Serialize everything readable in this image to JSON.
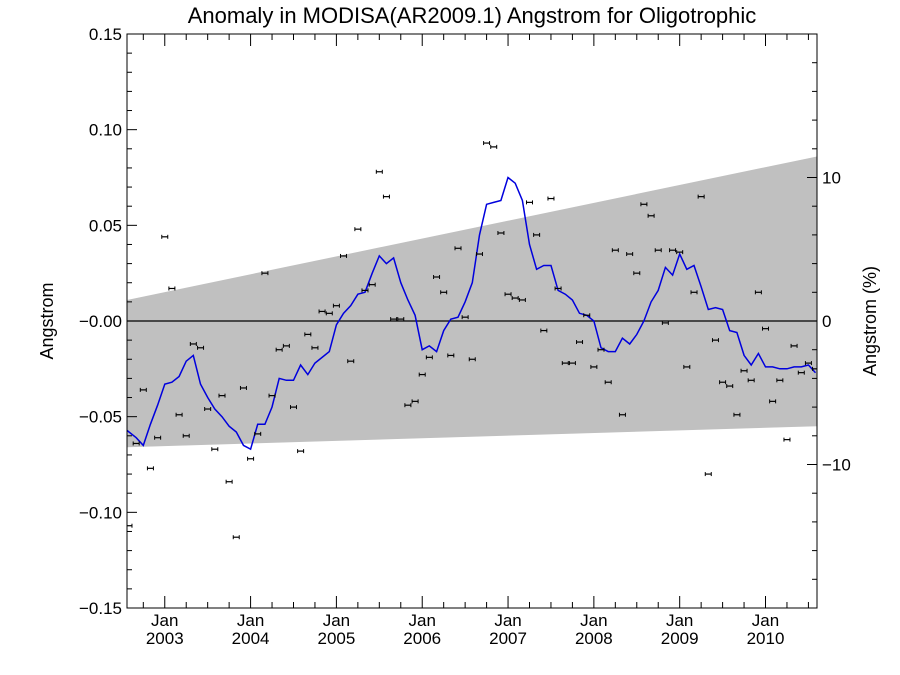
{
  "chart_data": {
    "type": "line",
    "title": "Anomaly in MODISA(AR2009.1) Angstrom for Oligotrophic",
    "ylabel": "Angstrom",
    "y2label": "Angstrom (%)",
    "xlim": [
      2002.56,
      2010.6
    ],
    "ylim": [
      -0.15,
      0.15
    ],
    "y2lim": [
      -20,
      20
    ],
    "yticks": [
      -0.15,
      -0.1,
      -0.05,
      0.0,
      0.05,
      0.1,
      0.15
    ],
    "ytick_labels": [
      "−0.15",
      "−0.10",
      "−0.05",
      "−0.00",
      "0.05",
      "0.10",
      "0.15"
    ],
    "y2ticks": [
      -10,
      0,
      10
    ],
    "y2tick_labels": [
      "−10",
      "0",
      "10"
    ],
    "xticks": [
      {
        "x": 2003.0,
        "month": "Jan",
        "year": "2003"
      },
      {
        "x": 2004.0,
        "month": "Jan",
        "year": "2004"
      },
      {
        "x": 2005.0,
        "month": "Jan",
        "year": "2005"
      },
      {
        "x": 2006.0,
        "month": "Jan",
        "year": "2006"
      },
      {
        "x": 2007.0,
        "month": "Jan",
        "year": "2007"
      },
      {
        "x": 2008.0,
        "month": "Jan",
        "year": "2008"
      },
      {
        "x": 2009.0,
        "month": "Jan",
        "year": "2009"
      },
      {
        "x": 2010.0,
        "month": "Jan",
        "year": "2010"
      }
    ],
    "zero_line": 0,
    "band": {
      "x": [
        2002.56,
        2010.6
      ],
      "upper": [
        0.011,
        0.086
      ],
      "lower": [
        -0.066,
        -0.055
      ],
      "color": "#c0c0c0"
    },
    "line_series": {
      "color": "#0000dd",
      "x": [
        2002.5,
        2002.583,
        2002.667,
        2002.75,
        2002.833,
        2002.917,
        2003.0,
        2003.083,
        2003.167,
        2003.25,
        2003.333,
        2003.417,
        2003.5,
        2003.583,
        2003.667,
        2003.75,
        2003.833,
        2003.917,
        2004.0,
        2004.083,
        2004.167,
        2004.25,
        2004.333,
        2004.417,
        2004.5,
        2004.583,
        2004.667,
        2004.75,
        2004.833,
        2004.917,
        2005.0,
        2005.083,
        2005.167,
        2005.25,
        2005.333,
        2005.417,
        2005.5,
        2005.583,
        2005.667,
        2005.75,
        2005.833,
        2005.917,
        2006.0,
        2006.083,
        2006.167,
        2006.25,
        2006.333,
        2006.417,
        2006.5,
        2006.583,
        2006.667,
        2006.75,
        2006.833,
        2006.917,
        2007.0,
        2007.083,
        2007.167,
        2007.25,
        2007.333,
        2007.417,
        2007.5,
        2007.583,
        2007.667,
        2007.75,
        2007.833,
        2007.917,
        2008.0,
        2008.083,
        2008.167,
        2008.25,
        2008.333,
        2008.417,
        2008.5,
        2008.583,
        2008.667,
        2008.75,
        2008.833,
        2008.917,
        2009.0,
        2009.083,
        2009.167,
        2009.25,
        2009.333,
        2009.417,
        2009.5,
        2009.583,
        2009.667,
        2009.75,
        2009.833,
        2009.917,
        2010.0,
        2010.083,
        2010.167,
        2010.25,
        2010.333,
        2010.417,
        2010.5,
        2010.583
      ],
      "y": [
        -0.055,
        -0.058,
        -0.061,
        -0.065,
        -0.054,
        -0.044,
        -0.033,
        -0.032,
        -0.029,
        -0.021,
        -0.018,
        -0.033,
        -0.04,
        -0.046,
        -0.05,
        -0.055,
        -0.058,
        -0.065,
        -0.067,
        -0.054,
        -0.054,
        -0.045,
        -0.03,
        -0.031,
        -0.031,
        -0.023,
        -0.028,
        -0.022,
        -0.019,
        -0.016,
        -0.002,
        0.004,
        0.008,
        0.014,
        0.015,
        0.025,
        0.034,
        0.03,
        0.033,
        0.02,
        0.011,
        0.003,
        -0.015,
        -0.013,
        -0.016,
        -0.005,
        0.001,
        0.002,
        0.01,
        0.02,
        0.045,
        0.061,
        0.062,
        0.063,
        0.075,
        0.072,
        0.063,
        0.04,
        0.027,
        0.029,
        0.029,
        0.016,
        0.014,
        0.011,
        0.004,
        0.003,
        0.0,
        -0.014,
        -0.016,
        -0.016,
        -0.009,
        -0.012,
        -0.007,
        0.0,
        0.01,
        0.016,
        0.028,
        0.024,
        0.035,
        0.027,
        0.029,
        0.018,
        0.006,
        0.007,
        0.006,
        -0.005,
        -0.006,
        -0.018,
        -0.023,
        -0.017,
        -0.024,
        -0.024,
        -0.025,
        -0.025,
        -0.024,
        -0.024,
        -0.023,
        -0.027
      ]
    },
    "points": {
      "x": [
        2002.5,
        2002.583,
        2002.667,
        2002.75,
        2002.833,
        2002.917,
        2003.0,
        2003.083,
        2003.167,
        2003.25,
        2003.333,
        2003.417,
        2003.5,
        2003.583,
        2003.667,
        2003.75,
        2003.833,
        2003.917,
        2004.0,
        2004.083,
        2004.167,
        2004.25,
        2004.333,
        2004.417,
        2004.5,
        2004.583,
        2004.667,
        2004.75,
        2004.833,
        2004.917,
        2005.0,
        2005.083,
        2005.167,
        2005.25,
        2005.333,
        2005.417,
        2005.5,
        2005.583,
        2005.667,
        2005.75,
        2005.833,
        2005.917,
        2006.0,
        2006.083,
        2006.167,
        2006.25,
        2006.333,
        2006.417,
        2006.5,
        2006.583,
        2006.667,
        2006.75,
        2006.833,
        2006.917,
        2007.0,
        2007.083,
        2007.167,
        2007.25,
        2007.333,
        2007.417,
        2007.5,
        2007.583,
        2007.667,
        2007.75,
        2007.833,
        2007.917,
        2008.0,
        2008.083,
        2008.167,
        2008.25,
        2008.333,
        2008.417,
        2008.5,
        2008.583,
        2008.667,
        2008.75,
        2008.833,
        2008.917,
        2009.0,
        2009.083,
        2009.167,
        2009.25,
        2009.333,
        2009.417,
        2009.5,
        2009.583,
        2009.667,
        2009.75,
        2009.833,
        2009.917,
        2010.0,
        2010.083,
        2010.167,
        2010.25,
        2010.333,
        2010.417,
        2010.5,
        2010.583
      ],
      "y": [
        -0.062,
        -0.107,
        -0.064,
        -0.036,
        -0.077,
        -0.061,
        0.044,
        0.017,
        -0.049,
        -0.06,
        -0.012,
        -0.014,
        -0.046,
        -0.067,
        -0.039,
        -0.084,
        -0.113,
        -0.035,
        -0.072,
        -0.059,
        0.025,
        -0.039,
        -0.015,
        -0.013,
        -0.045,
        -0.068,
        -0.007,
        -0.014,
        0.005,
        0.004,
        0.008,
        0.034,
        -0.021,
        0.048,
        0.016,
        0.019,
        0.078,
        0.065,
        0.001,
        0.001,
        -0.044,
        -0.042,
        -0.028,
        -0.019,
        0.023,
        0.015,
        -0.018,
        0.038,
        0.002,
        -0.02,
        0.035,
        0.093,
        0.091,
        0.046,
        0.014,
        0.012,
        0.011,
        0.062,
        0.045,
        -0.005,
        0.064,
        0.017,
        -0.022,
        -0.022,
        -0.011,
        0.003,
        -0.024,
        -0.015,
        -0.032,
        0.037,
        -0.049,
        0.035,
        0.025,
        0.061,
        0.055,
        0.037,
        -0.001,
        0.037,
        0.036,
        -0.024,
        0.015,
        0.065,
        -0.08,
        -0.01,
        -0.032,
        -0.034,
        -0.049,
        -0.026,
        -0.031,
        0.015,
        -0.004,
        -0.042,
        -0.031,
        -0.062,
        -0.013,
        -0.027,
        -0.022,
        -0.025
      ]
    }
  }
}
